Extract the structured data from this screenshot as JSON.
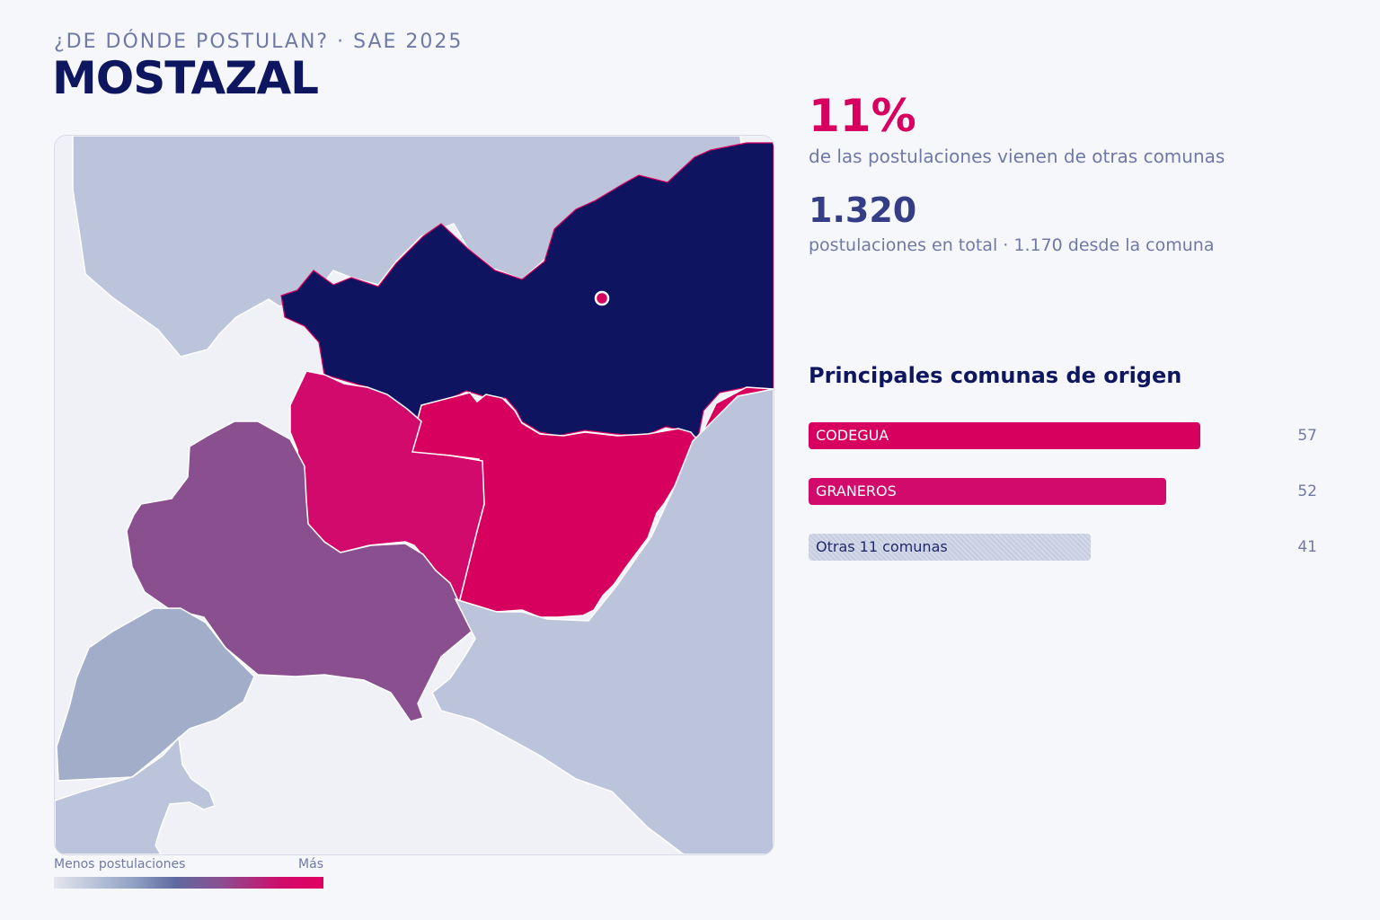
{
  "header": {
    "kicker": "¿DE DÓNDE POSTULAN? · SAE 2025",
    "title": "MOSTAZAL"
  },
  "kpis": {
    "pct_value": "11%",
    "pct_caption": "de las postulaciones vienen de otras comunas",
    "total_value": "1.320",
    "total_caption": "postulaciones en total · 1.170 desde la comuna"
  },
  "legend": {
    "low_label": "Menos postulaciones",
    "high_label": "Más"
  },
  "ranking": {
    "title": "Principales comunas de origen",
    "items": [
      {
        "label": "CODEGUA",
        "value": 57,
        "color": "#d8005f",
        "style": "solid"
      },
      {
        "label": "GRANEROS",
        "value": 52,
        "color": "#d20a6b",
        "style": "solid"
      },
      {
        "label": "Otras 11 comunas",
        "value": 41,
        "color": "#c7cde0",
        "style": "hatched"
      }
    ]
  },
  "colors": {
    "home": "#0f1460",
    "high": "#d8005f",
    "mid_high": "#d20a6b",
    "mid": "#894f8f",
    "low": "#a2adc9",
    "very_low": "#bbc4db",
    "background": "#eff1f7",
    "marker": "#d8005f"
  }
}
